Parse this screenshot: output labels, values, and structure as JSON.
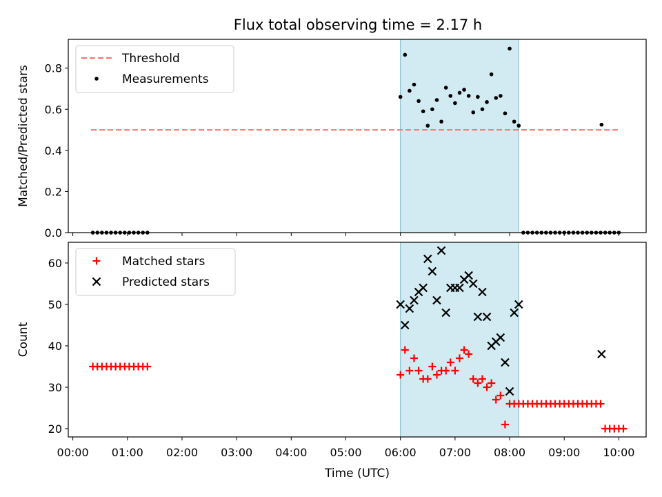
{
  "figure": {
    "title": "Flux total observing time = 2.17 h"
  },
  "colors": {
    "threshold": "#ff7070",
    "measurement": "#000000",
    "matched": "#ff0000",
    "predicted": "#000000",
    "highlight": "#add8e6",
    "highlight_edge": "#8fc1cc"
  },
  "chart_data": [
    {
      "type": "scatter",
      "title": "Flux total observing time = 2.17 h",
      "xlabel": "",
      "ylabel": "Matched/Predicted stars",
      "xlim": [
        "23:55",
        "10:30"
      ],
      "ylim": [
        0,
        0.94
      ],
      "yticks": [
        0.0,
        0.2,
        0.4,
        0.6,
        0.8
      ],
      "ytick_labels": [
        "0.0",
        "0.2",
        "0.4",
        "0.6",
        "0.8"
      ],
      "highlight_span": [
        "06:00",
        "08:10"
      ],
      "legend": {
        "placement": "top-left",
        "entries": [
          "Threshold",
          "Measurements"
        ]
      },
      "series": [
        {
          "name": "Threshold",
          "kind": "dashed-line",
          "points": [
            [
              "00:20",
              0.5
            ],
            [
              "10:00",
              0.5
            ]
          ]
        },
        {
          "name": "Measurements",
          "kind": "dot",
          "points": [
            [
              "00:22",
              0
            ],
            [
              "00:27",
              0
            ],
            [
              "00:32",
              0
            ],
            [
              "00:37",
              0
            ],
            [
              "00:42",
              0
            ],
            [
              "00:47",
              0
            ],
            [
              "00:52",
              0
            ],
            [
              "00:57",
              0
            ],
            [
              "01:02",
              0
            ],
            [
              "01:07",
              0
            ],
            [
              "01:12",
              0
            ],
            [
              "01:17",
              0
            ],
            [
              "01:22",
              0
            ],
            [
              "06:00",
              0.66
            ],
            [
              "06:05",
              0.865
            ],
            [
              "06:10",
              0.69
            ],
            [
              "06:15",
              0.72
            ],
            [
              "06:20",
              0.64
            ],
            [
              "06:25",
              0.59
            ],
            [
              "06:30",
              0.52
            ],
            [
              "06:35",
              0.6
            ],
            [
              "06:40",
              0.645
            ],
            [
              "06:45",
              0.54
            ],
            [
              "06:50",
              0.705
            ],
            [
              "06:55",
              0.665
            ],
            [
              "07:00",
              0.63
            ],
            [
              "07:05",
              0.68
            ],
            [
              "07:10",
              0.695
            ],
            [
              "07:15",
              0.665
            ],
            [
              "07:20",
              0.585
            ],
            [
              "07:25",
              0.66
            ],
            [
              "07:30",
              0.6
            ],
            [
              "07:35",
              0.635
            ],
            [
              "07:40",
              0.77
            ],
            [
              "07:45",
              0.655
            ],
            [
              "07:50",
              0.665
            ],
            [
              "07:55",
              0.58
            ],
            [
              "08:00",
              0.895
            ],
            [
              "08:05",
              0.54
            ],
            [
              "08:10",
              0.52
            ],
            [
              "08:15",
              0
            ],
            [
              "08:20",
              0
            ],
            [
              "08:25",
              0
            ],
            [
              "08:30",
              0
            ],
            [
              "08:35",
              0
            ],
            [
              "08:40",
              0
            ],
            [
              "08:45",
              0
            ],
            [
              "08:50",
              0
            ],
            [
              "08:55",
              0
            ],
            [
              "09:00",
              0
            ],
            [
              "09:05",
              0
            ],
            [
              "09:10",
              0
            ],
            [
              "09:15",
              0
            ],
            [
              "09:20",
              0
            ],
            [
              "09:25",
              0
            ],
            [
              "09:30",
              0
            ],
            [
              "09:35",
              0
            ],
            [
              "09:40",
              0
            ],
            [
              "09:45",
              0
            ],
            [
              "09:41",
              0.525
            ],
            [
              "09:50",
              0
            ],
            [
              "09:55",
              0
            ],
            [
              "10:00",
              0
            ]
          ]
        }
      ]
    },
    {
      "type": "scatter",
      "title": "",
      "xlabel": "Time (UTC)",
      "ylabel": "Count",
      "xlim": [
        "23:55",
        "10:30"
      ],
      "ylim": [
        18,
        65
      ],
      "yticks": [
        20,
        30,
        40,
        50,
        60
      ],
      "ytick_labels": [
        "20",
        "30",
        "40",
        "50",
        "60"
      ],
      "xticks": [
        "00:00",
        "01:00",
        "02:00",
        "03:00",
        "04:00",
        "05:00",
        "06:00",
        "07:00",
        "08:00",
        "09:00",
        "10:00"
      ],
      "xtick_labels": [
        "00:00",
        "01:00",
        "02:00",
        "03:00",
        "04:00",
        "05:00",
        "06:00",
        "07:00",
        "08:00",
        "09:00",
        "10:00"
      ],
      "highlight_span": [
        "06:00",
        "08:10"
      ],
      "legend": {
        "placement": "top-left",
        "entries": [
          "Matched stars",
          "Predicted stars"
        ]
      },
      "series": [
        {
          "name": "Matched stars",
          "kind": "plus",
          "points": [
            [
              "00:22",
              35
            ],
            [
              "00:27",
              35
            ],
            [
              "00:32",
              35
            ],
            [
              "00:37",
              35
            ],
            [
              "00:42",
              35
            ],
            [
              "00:47",
              35
            ],
            [
              "00:52",
              35
            ],
            [
              "00:57",
              35
            ],
            [
              "01:02",
              35
            ],
            [
              "01:07",
              35
            ],
            [
              "01:12",
              35
            ],
            [
              "01:17",
              35
            ],
            [
              "01:22",
              35
            ],
            [
              "06:00",
              33
            ],
            [
              "06:05",
              39
            ],
            [
              "06:10",
              34
            ],
            [
              "06:15",
              37
            ],
            [
              "06:20",
              34
            ],
            [
              "06:25",
              32
            ],
            [
              "06:30",
              32
            ],
            [
              "06:35",
              35
            ],
            [
              "06:40",
              33
            ],
            [
              "06:45",
              34
            ],
            [
              "06:50",
              34
            ],
            [
              "06:55",
              36
            ],
            [
              "07:00",
              34
            ],
            [
              "07:05",
              37
            ],
            [
              "07:10",
              39
            ],
            [
              "07:15",
              38
            ],
            [
              "07:20",
              32
            ],
            [
              "07:25",
              31
            ],
            [
              "07:30",
              32
            ],
            [
              "07:35",
              30
            ],
            [
              "07:40",
              31
            ],
            [
              "07:45",
              27
            ],
            [
              "07:50",
              28
            ],
            [
              "07:55",
              21
            ],
            [
              "08:00",
              26
            ],
            [
              "08:05",
              26
            ],
            [
              "08:10",
              26
            ],
            [
              "08:15",
              26
            ],
            [
              "08:20",
              26
            ],
            [
              "08:25",
              26
            ],
            [
              "08:30",
              26
            ],
            [
              "08:35",
              26
            ],
            [
              "08:40",
              26
            ],
            [
              "08:45",
              26
            ],
            [
              "08:50",
              26
            ],
            [
              "08:55",
              26
            ],
            [
              "09:00",
              26
            ],
            [
              "09:05",
              26
            ],
            [
              "09:10",
              26
            ],
            [
              "09:15",
              26
            ],
            [
              "09:20",
              26
            ],
            [
              "09:25",
              26
            ],
            [
              "09:30",
              26
            ],
            [
              "09:35",
              26
            ],
            [
              "09:40",
              26
            ],
            [
              "09:45",
              20
            ],
            [
              "09:50",
              20
            ],
            [
              "09:55",
              20
            ],
            [
              "10:00",
              20
            ],
            [
              "10:05",
              20
            ]
          ]
        },
        {
          "name": "Predicted stars",
          "kind": "x",
          "points": [
            [
              "06:00",
              50
            ],
            [
              "06:05",
              45
            ],
            [
              "06:10",
              49
            ],
            [
              "06:15",
              51
            ],
            [
              "06:20",
              53
            ],
            [
              "06:25",
              54
            ],
            [
              "06:30",
              61
            ],
            [
              "06:35",
              58
            ],
            [
              "06:40",
              51
            ],
            [
              "06:45",
              63
            ],
            [
              "06:50",
              48
            ],
            [
              "06:55",
              54
            ],
            [
              "07:00",
              54
            ],
            [
              "07:05",
              54
            ],
            [
              "07:10",
              56
            ],
            [
              "07:15",
              57
            ],
            [
              "07:20",
              55
            ],
            [
              "07:25",
              47
            ],
            [
              "07:30",
              53
            ],
            [
              "07:35",
              47
            ],
            [
              "07:40",
              40
            ],
            [
              "07:45",
              41
            ],
            [
              "07:50",
              42
            ],
            [
              "07:55",
              36
            ],
            [
              "08:00",
              29
            ],
            [
              "08:05",
              48
            ],
            [
              "08:10",
              50
            ],
            [
              "09:41",
              38
            ]
          ]
        }
      ]
    }
  ]
}
